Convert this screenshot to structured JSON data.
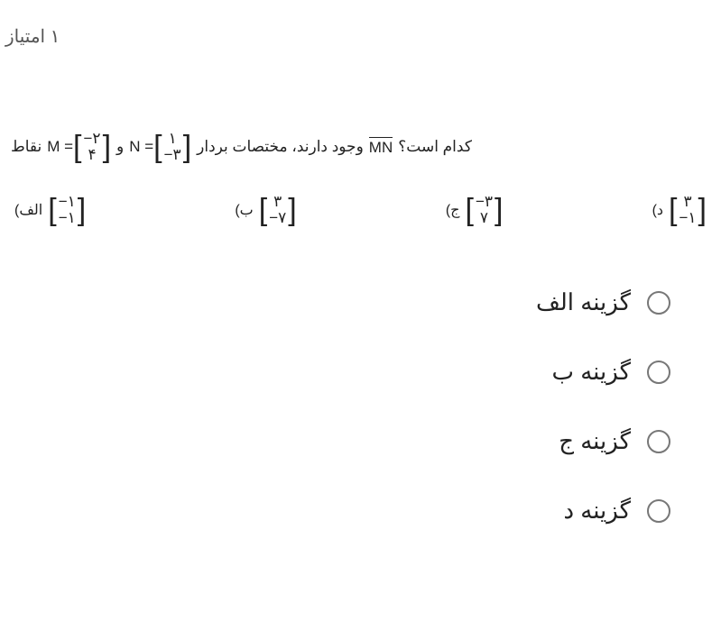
{
  "points_label": "۱ امتیاز",
  "question": {
    "prefix": "نقاط",
    "m_label": "M =",
    "m_matrix": [
      "−۲",
      "۴"
    ],
    "and": "و",
    "n_label": "N =",
    "n_matrix": [
      "۱",
      "−۳"
    ],
    "mid1": "وجود دارند، مختصات بردار",
    "vector_name": "MN",
    "mid2": "کدام است؟"
  },
  "answers": {
    "alf": {
      "label": "الف)",
      "matrix": [
        "−۱",
        "−۱"
      ]
    },
    "be": {
      "label": "ب)",
      "matrix": [
        "۳",
        "−۷"
      ]
    },
    "je": {
      "label": "ج)",
      "matrix": [
        "−۳",
        "۷"
      ]
    },
    "dal": {
      "label": "د)",
      "matrix": [
        "۳",
        "−۱"
      ]
    }
  },
  "options": {
    "alf": "گزینه الف",
    "be": "گزینه ب",
    "je": "گزینه ج",
    "dal": "گزینه د"
  },
  "colors": {
    "text": "#222222",
    "muted": "#555555",
    "radio_border": "#777777",
    "background": "#ffffff"
  }
}
